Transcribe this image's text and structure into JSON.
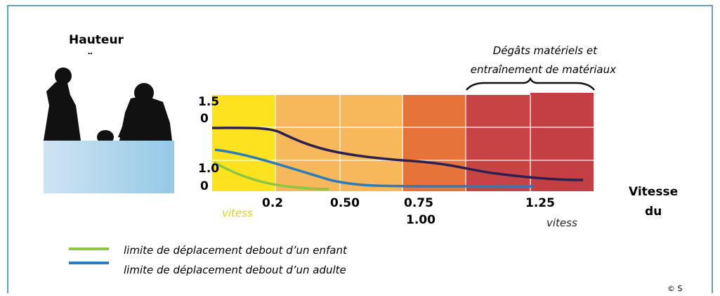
{
  "y_label": "Hauteur",
  "y_ticks": [
    {
      "top": "1.5",
      "bottom": "0"
    },
    {
      "top": "1.0",
      "bottom": "0"
    }
  ],
  "x_ticks": [
    "0.2",
    "0.50",
    "0.75",
    "1.00",
    "1.25"
  ],
  "x_unit_left": "vitess",
  "x_unit_right": "vitess",
  "x_label": [
    "Vitesse",
    "du"
  ],
  "annotation": [
    "Dégâts matériels et",
    "entraînement de matériaux"
  ],
  "legend": [
    {
      "label": "limite de déplacement debout d’un enfant",
      "color": "#8dc63f"
    },
    {
      "label": "limite de déplacement debout d’un adulte",
      "color": "#2b7bbd"
    }
  ],
  "credit": "© S"
}
